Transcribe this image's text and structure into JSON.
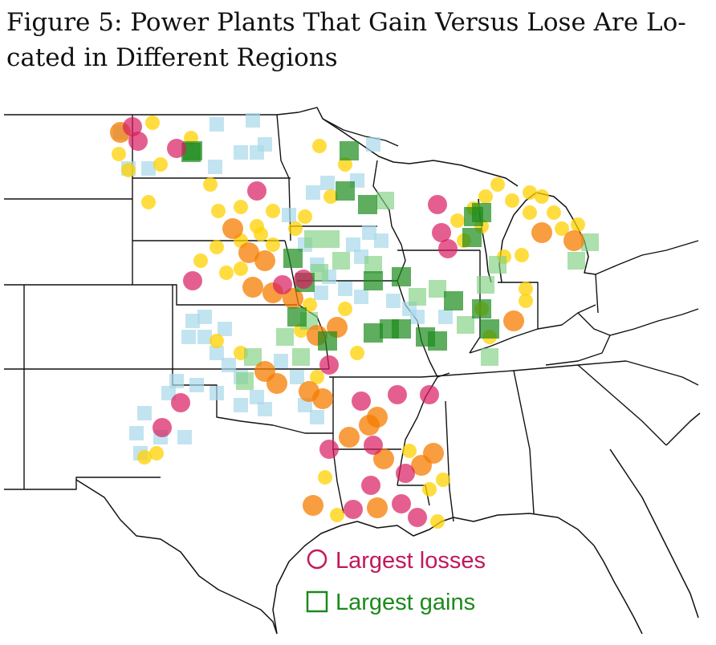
{
  "figure": {
    "title": "Figure 5: Power Plants That Gain Versus Lose Are Lo-cated in Different Regions"
  },
  "legend": {
    "losses_label": "Largest losses",
    "gains_label": "Largest gains"
  },
  "colors": {
    "loss_strong": "#d81b60",
    "loss_orange": "#f57c00",
    "loss_yellow": "#ffd200",
    "gain_strong": "#1b8a1b",
    "gain_light": "#7fd07f",
    "gain_pale": "#a8d8ea",
    "legend_loss_text": "#c2185b",
    "legend_gain_text": "#1b8a1b"
  }
}
